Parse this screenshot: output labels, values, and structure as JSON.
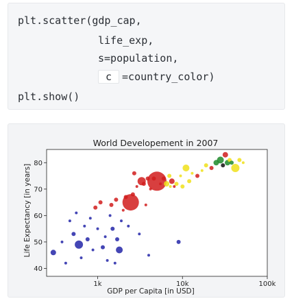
{
  "code": {
    "line1": "plt.scatter(gdp_cap,",
    "line2": "life_exp,",
    "line3": "s=population,",
    "line4_kw": "c",
    "line4_rest": "=country_color)",
    "line5": "plt.show()"
  },
  "chart_data": {
    "type": "scatter",
    "title": "World Developement in 2007",
    "xlabel": "GDP per Capita [in USD]",
    "ylabel": "Life Expectancy [in years]",
    "xscale": "log",
    "xlim": [
      250,
      100000
    ],
    "ylim": [
      37,
      85
    ],
    "xticks": [
      1000,
      10000,
      100000
    ],
    "xtick_labels": [
      "1k",
      "10k",
      "100k"
    ],
    "yticks": [
      40,
      50,
      60,
      70,
      80
    ],
    "ytick_labels": [
      "40",
      "50",
      "60",
      "70",
      "80"
    ],
    "grid": false,
    "colors": {
      "red": "#d11d1d",
      "blue": "#2326a8",
      "yellow": "#f0e11a",
      "green": "#1e8a2a",
      "black": "#111111"
    },
    "points": [
      {
        "x": 300,
        "y": 46,
        "s": 4,
        "c": "blue"
      },
      {
        "x": 380,
        "y": 50,
        "s": 2,
        "c": "blue"
      },
      {
        "x": 420,
        "y": 42,
        "s": 2,
        "c": "blue"
      },
      {
        "x": 470,
        "y": 58,
        "s": 2,
        "c": "blue"
      },
      {
        "x": 520,
        "y": 53,
        "s": 3,
        "c": "blue"
      },
      {
        "x": 560,
        "y": 61,
        "s": 2,
        "c": "blue"
      },
      {
        "x": 600,
        "y": 49,
        "s": 6,
        "c": "blue"
      },
      {
        "x": 640,
        "y": 44,
        "s": 2,
        "c": "blue"
      },
      {
        "x": 700,
        "y": 56,
        "s": 2,
        "c": "blue"
      },
      {
        "x": 760,
        "y": 51,
        "s": 3,
        "c": "blue"
      },
      {
        "x": 820,
        "y": 59,
        "s": 2,
        "c": "blue"
      },
      {
        "x": 880,
        "y": 47,
        "s": 2,
        "c": "blue"
      },
      {
        "x": 940,
        "y": 63,
        "s": 3,
        "c": "red"
      },
      {
        "x": 1000,
        "y": 55,
        "s": 2,
        "c": "blue"
      },
      {
        "x": 1080,
        "y": 65,
        "s": 3,
        "c": "red"
      },
      {
        "x": 1150,
        "y": 48,
        "s": 3,
        "c": "blue"
      },
      {
        "x": 1230,
        "y": 52,
        "s": 2,
        "c": "blue"
      },
      {
        "x": 1300,
        "y": 43,
        "s": 2,
        "c": "blue"
      },
      {
        "x": 1400,
        "y": 60,
        "s": 2,
        "c": "blue"
      },
      {
        "x": 1450,
        "y": 64,
        "s": 3,
        "c": "red"
      },
      {
        "x": 1500,
        "y": 55,
        "s": 3,
        "c": "blue"
      },
      {
        "x": 1600,
        "y": 42,
        "s": 2,
        "c": "blue"
      },
      {
        "x": 1650,
        "y": 66,
        "s": 3,
        "c": "red"
      },
      {
        "x": 1700,
        "y": 51,
        "s": 3,
        "c": "blue"
      },
      {
        "x": 1800,
        "y": 47,
        "s": 5,
        "c": "blue"
      },
      {
        "x": 1900,
        "y": 58,
        "s": 2,
        "c": "blue"
      },
      {
        "x": 2000,
        "y": 62,
        "s": 2,
        "c": "red"
      },
      {
        "x": 2150,
        "y": 67,
        "s": 3,
        "c": "red"
      },
      {
        "x": 2300,
        "y": 56,
        "s": 2,
        "c": "blue"
      },
      {
        "x": 2450,
        "y": 65,
        "s": 12,
        "c": "red"
      },
      {
        "x": 2600,
        "y": 68,
        "s": 3,
        "c": "red"
      },
      {
        "x": 2700,
        "y": 76,
        "s": 3,
        "c": "red"
      },
      {
        "x": 2900,
        "y": 71,
        "s": 2,
        "c": "red"
      },
      {
        "x": 3100,
        "y": 53,
        "s": 2,
        "c": "blue"
      },
      {
        "x": 3300,
        "y": 73,
        "s": 6,
        "c": "red"
      },
      {
        "x": 3500,
        "y": 72,
        "s": 3,
        "c": "red"
      },
      {
        "x": 3700,
        "y": 64,
        "s": 2,
        "c": "red"
      },
      {
        "x": 3900,
        "y": 74,
        "s": 3,
        "c": "red"
      },
      {
        "x": 4000,
        "y": 45,
        "s": 2,
        "c": "blue"
      },
      {
        "x": 4200,
        "y": 70,
        "s": 2,
        "c": "red"
      },
      {
        "x": 4600,
        "y": 74,
        "s": 3,
        "c": "red"
      },
      {
        "x": 5000,
        "y": 73,
        "s": 14,
        "c": "red"
      },
      {
        "x": 5500,
        "y": 72,
        "s": 2,
        "c": "red"
      },
      {
        "x": 6000,
        "y": 74,
        "s": 3,
        "c": "red"
      },
      {
        "x": 6500,
        "y": 72,
        "s": 4,
        "c": "yellow"
      },
      {
        "x": 7000,
        "y": 75,
        "s": 3,
        "c": "yellow"
      },
      {
        "x": 7200,
        "y": 71,
        "s": 2,
        "c": "yellow"
      },
      {
        "x": 7500,
        "y": 73,
        "s": 4,
        "c": "red"
      },
      {
        "x": 8000,
        "y": 71,
        "s": 2,
        "c": "red"
      },
      {
        "x": 8500,
        "y": 72,
        "s": 3,
        "c": "yellow"
      },
      {
        "x": 9000,
        "y": 50,
        "s": 3,
        "c": "blue"
      },
      {
        "x": 9500,
        "y": 75,
        "s": 2,
        "c": "yellow"
      },
      {
        "x": 10000,
        "y": 71,
        "s": 3,
        "c": "yellow"
      },
      {
        "x": 11000,
        "y": 78,
        "s": 5,
        "c": "yellow"
      },
      {
        "x": 12000,
        "y": 73,
        "s": 3,
        "c": "yellow"
      },
      {
        "x": 13000,
        "y": 76,
        "s": 2,
        "c": "yellow"
      },
      {
        "x": 15000,
        "y": 75,
        "s": 3,
        "c": "red"
      },
      {
        "x": 17000,
        "y": 77,
        "s": 2,
        "c": "yellow"
      },
      {
        "x": 19000,
        "y": 79,
        "s": 3,
        "c": "yellow"
      },
      {
        "x": 22000,
        "y": 78,
        "s": 3,
        "c": "red"
      },
      {
        "x": 25000,
        "y": 80,
        "s": 4,
        "c": "green"
      },
      {
        "x": 28000,
        "y": 81,
        "s": 5,
        "c": "green"
      },
      {
        "x": 30000,
        "y": 79,
        "s": 3,
        "c": "black"
      },
      {
        "x": 32000,
        "y": 83,
        "s": 4,
        "c": "red"
      },
      {
        "x": 34000,
        "y": 80,
        "s": 4,
        "c": "green"
      },
      {
        "x": 36000,
        "y": 81,
        "s": 3,
        "c": "yellow"
      },
      {
        "x": 38000,
        "y": 80,
        "s": 3,
        "c": "green"
      },
      {
        "x": 42000,
        "y": 78,
        "s": 6,
        "c": "yellow"
      },
      {
        "x": 47000,
        "y": 81,
        "s": 3,
        "c": "yellow"
      },
      {
        "x": 52000,
        "y": 80,
        "s": 2,
        "c": "yellow"
      }
    ]
  }
}
